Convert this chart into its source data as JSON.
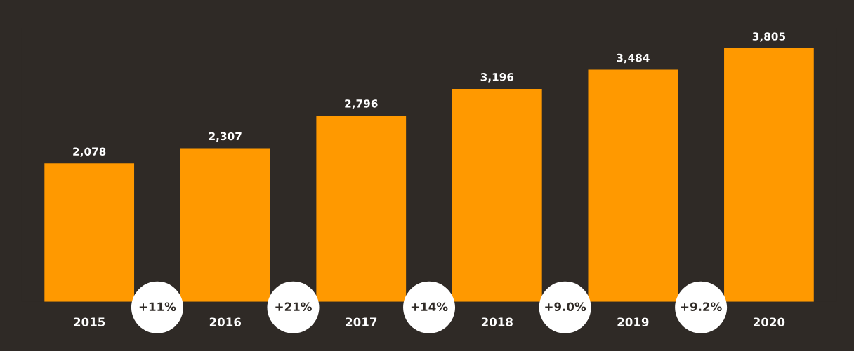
{
  "chart_data": {
    "type": "bar",
    "categories": [
      "2015",
      "2016",
      "2017",
      "2018",
      "2019",
      "2020"
    ],
    "values": [
      2078,
      2307,
      2796,
      3196,
      3484,
      3805
    ],
    "color": "#ff9900",
    "value_labels": [
      "2,078",
      "2,307",
      "2,796",
      "3,196",
      "3,484",
      "3,805"
    ],
    "annotations": [
      "+11%",
      "+21%",
      "+14%",
      "+9.0%",
      "+9.2%"
    ],
    "grid": false,
    "legend": false,
    "tick_labels": "x"
  }
}
